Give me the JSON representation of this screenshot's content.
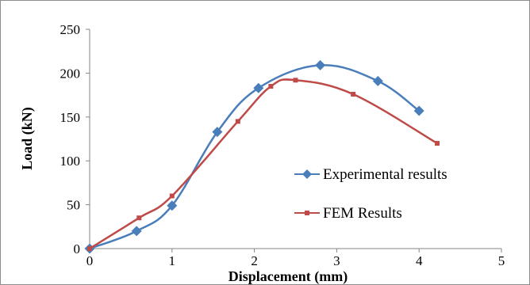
{
  "chart_data": {
    "type": "line",
    "title": "",
    "xlabel": "Displacement (mm)",
    "ylabel": "Load (kN)",
    "xlim": [
      0,
      5
    ],
    "ylim": [
      0,
      250
    ],
    "x_ticks": [
      "0",
      "1",
      "2",
      "3",
      "4",
      "5"
    ],
    "y_ticks": [
      "0",
      "50",
      "100",
      "150",
      "200",
      "250"
    ],
    "grid": false,
    "legend_position": "right",
    "series": [
      {
        "name": "Experimental results",
        "color": "#4a7ebb",
        "marker": "diamond",
        "points": [
          [
            0,
            0
          ],
          [
            0.57,
            20
          ],
          [
            1.0,
            49
          ],
          [
            1.55,
            133
          ],
          [
            2.05,
            183
          ],
          [
            2.8,
            209
          ],
          [
            3.5,
            191
          ],
          [
            4.0,
            157
          ]
        ]
      },
      {
        "name": "FEM Results",
        "color": "#be4b48",
        "marker": "square",
        "points": [
          [
            0,
            0
          ],
          [
            0.6,
            35
          ],
          [
            1.0,
            60
          ],
          [
            1.8,
            145
          ],
          [
            2.2,
            185
          ],
          [
            2.5,
            192
          ],
          [
            3.2,
            176
          ],
          [
            4.22,
            120
          ]
        ]
      }
    ]
  }
}
